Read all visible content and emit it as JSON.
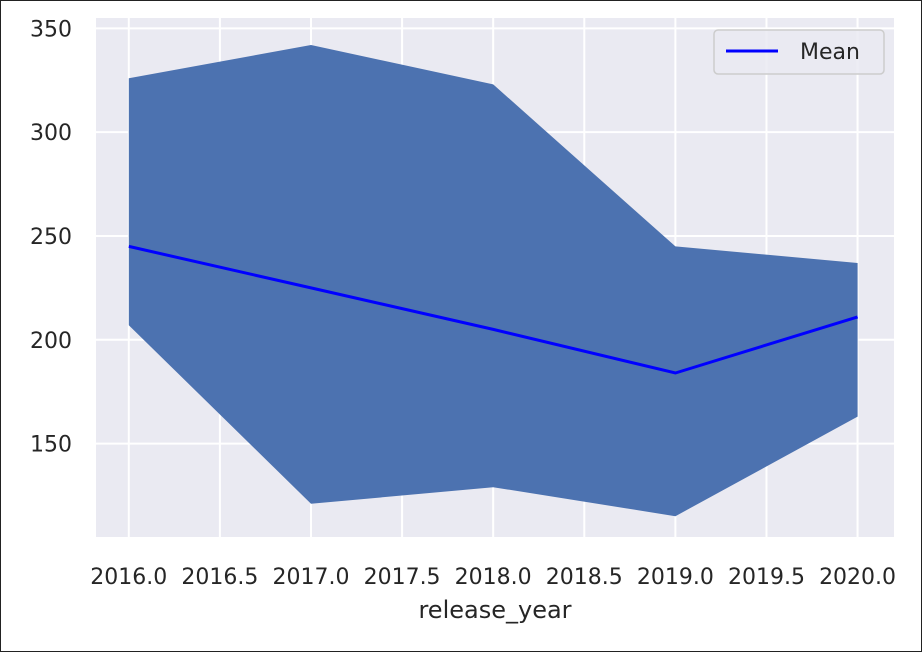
{
  "chart_data": {
    "type": "line",
    "title": "",
    "xlabel": "release_year",
    "ylabel": "",
    "x": [
      2016,
      2017,
      2018,
      2019,
      2020
    ],
    "xlim": [
      2015.82,
      2020.2
    ],
    "ylim": [
      105,
      355
    ],
    "xticks": [
      2016.0,
      2016.5,
      2017.0,
      2017.5,
      2018.0,
      2018.5,
      2019.0,
      2019.5,
      2020.0
    ],
    "xtick_labels": [
      "2016.0",
      "2016.5",
      "2017.0",
      "2017.5",
      "2018.0",
      "2018.5",
      "2019.0",
      "2019.5",
      "2020.0"
    ],
    "yticks": [
      150,
      200,
      250,
      300,
      350
    ],
    "ytick_labels": [
      "150",
      "200",
      "250",
      "300",
      "350"
    ],
    "series": [
      {
        "name": "Mean",
        "kind": "line",
        "color": "#0000ff",
        "values": [
          245,
          225,
          205,
          184,
          211
        ]
      }
    ],
    "band": {
      "color": "#4c72b0",
      "upper": [
        326,
        342,
        323,
        245,
        237
      ],
      "lower": [
        207,
        121,
        129,
        115,
        163
      ]
    },
    "legend": {
      "position": "top-right",
      "entries": [
        "Mean"
      ]
    },
    "grid": true,
    "background": "#eaeaf2"
  }
}
